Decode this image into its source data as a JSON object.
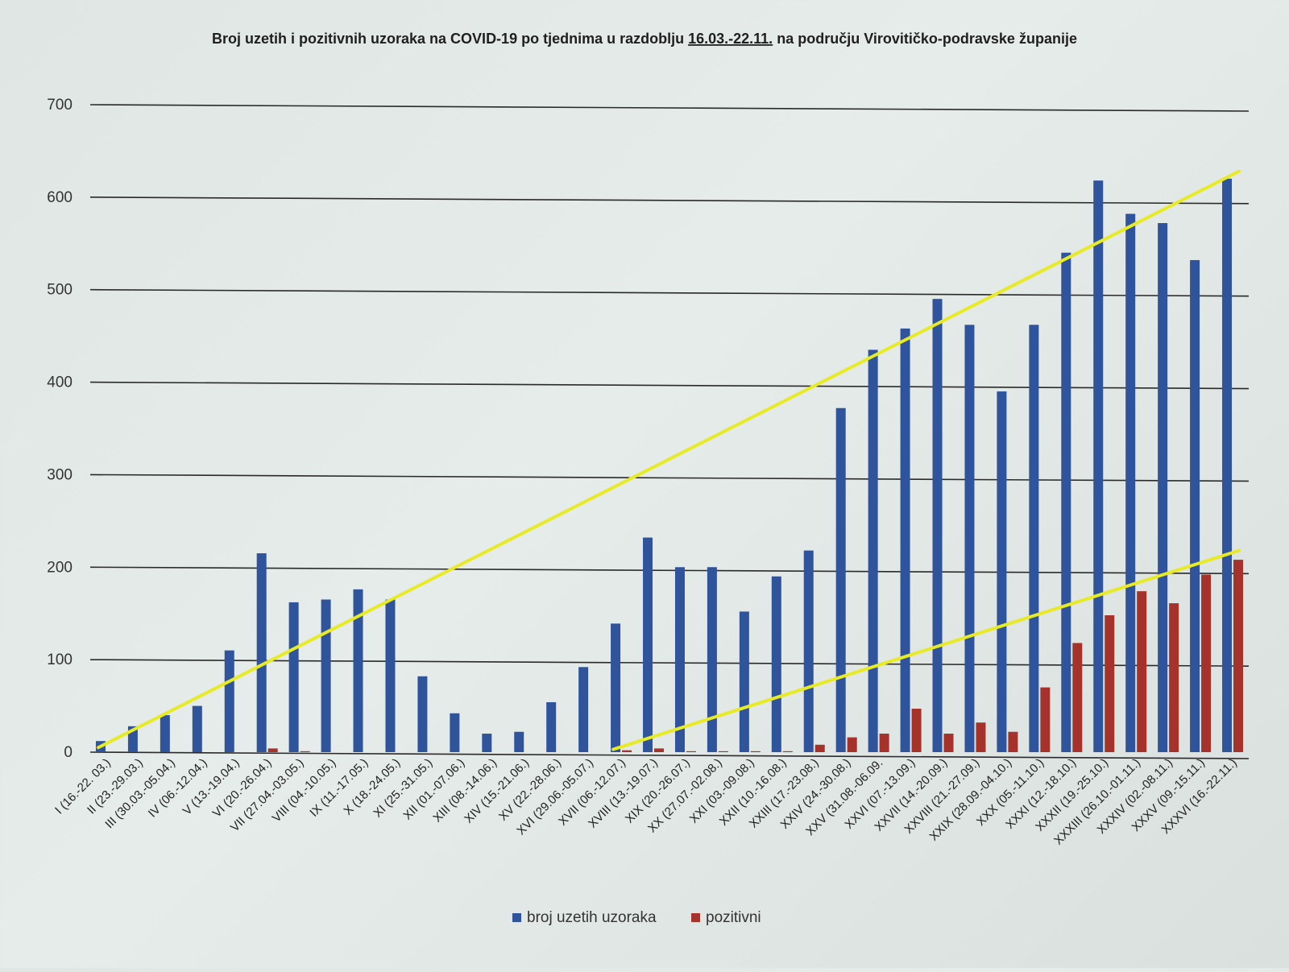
{
  "chart_data": {
    "type": "bar",
    "title_main": "Broj uzetih i pozitivnih uzoraka na COVID-19 po tjednima u razdoblju",
    "title_range": "16.03.-22.11.",
    "title_tail": "na području Virovitičko-podravske županije",
    "y_ticks": [
      "0",
      "100",
      "200",
      "300",
      "400",
      "500",
      "600",
      "700"
    ],
    "ylim": [
      0,
      700
    ],
    "grid": true,
    "legend_position": "bottom",
    "categories": [
      "I (16.-22. 03.)",
      "II (23.-29.03.)",
      "III (30.03.-05.04.)",
      "IV (06.-12.04.)",
      "V (13.-19.04.)",
      "VI (20.-26.04.)",
      "VII (27.04.-03.05.)",
      "VIII (04.-10.05.)",
      "IX (11.-17.05.)",
      "X (18.-24.05.)",
      "XI (25.-31.05.)",
      "XII (01.-07.06.)",
      "XIII (08.-14.06.)",
      "XIV (15.-21.06.)",
      "XV (22.-28.06.)",
      "XVI (29.06.-05.07.)",
      "XVII (06.-12.07.)",
      "XVIII (13.-19.07.)",
      "XIX (20.-26.07.)",
      "XX (27.07.-02.08.)",
      "XXI (03.-09.08.)",
      "XXII (10.-16.08.)",
      "XXIII (17.-23.08.)",
      "XXIV (24.-30.08.)",
      "XXV (31.08.-06.09.",
      "XXVI (07.-13.09.)",
      "XXVII (14.-20.09.)",
      "XXVIII (21.-27.09.)",
      "XXIX (28.09.-04.10.)",
      "XXX (05.-11.10.)",
      "XXXI (12.-18.10.)",
      "XXXII (19.-25.10.)",
      "XXXIII (26.10.-01.11.)",
      "XXXIV (02.-08.11.)",
      "XXXV (09.-15.11.)",
      "XXXVI (16.-22.11.)"
    ],
    "series": [
      {
        "name": "broj uzetih uzoraka",
        "color": "#2f549c",
        "values": [
          12,
          28,
          40,
          50,
          110,
          215,
          162,
          165,
          176,
          165,
          82,
          42,
          20,
          22,
          54,
          92,
          139,
          232,
          200,
          200,
          152,
          190,
          218,
          372,
          435,
          458,
          490,
          462,
          390,
          462,
          540,
          618,
          582,
          572,
          532,
          620
        ]
      },
      {
        "name": "pozitivni",
        "color": "#a5322b",
        "values": [
          0,
          0,
          0,
          0,
          0,
          4,
          1,
          0,
          0,
          0,
          0,
          0,
          0,
          0,
          0,
          0,
          2,
          4,
          1,
          1,
          1,
          1,
          8,
          16,
          20,
          47,
          20,
          32,
          22,
          70,
          118,
          148,
          174,
          161,
          192,
          208
        ]
      }
    ],
    "trendlines": [
      {
        "color": "#e8ea24",
        "from": {
          "category": "I (16.-22. 03.)",
          "y": 5
        },
        "to": {
          "category": "XXXVI (16.-22.11.)",
          "y": 628
        }
      },
      {
        "color": "#e8ea24",
        "from": {
          "category": "XVII (06.-12.07.)",
          "y": 3
        },
        "to": {
          "category": "XXXVI (16.-22.11.)",
          "y": 218
        }
      }
    ]
  }
}
